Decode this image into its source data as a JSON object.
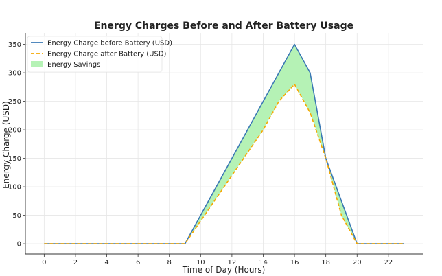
{
  "chart_data": {
    "type": "line",
    "title": "Energy Charges Before and After Battery Usage",
    "xlabel": "Time of Day (Hours)",
    "ylabel": "Energy Charge (USD)",
    "x": [
      0,
      1,
      2,
      3,
      4,
      5,
      6,
      7,
      8,
      9,
      10,
      11,
      12,
      13,
      14,
      15,
      16,
      17,
      18,
      19,
      20,
      21,
      22,
      23
    ],
    "xlim": [
      -1.2,
      24.2
    ],
    "ylim": [
      -18,
      370
    ],
    "xticks": [
      0,
      2,
      4,
      6,
      8,
      10,
      12,
      14,
      16,
      18,
      20,
      22
    ],
    "yticks": [
      0,
      50,
      100,
      150,
      200,
      250,
      300,
      350
    ],
    "grid": true,
    "legend_position": "top-left",
    "series": [
      {
        "name": "Energy Charge before Battery (USD)",
        "style": "solid",
        "color": "#3a78b4",
        "values": [
          0,
          0,
          0,
          0,
          0,
          0,
          0,
          0,
          0,
          0,
          50,
          100,
          150,
          200,
          250,
          300,
          350,
          300,
          150,
          75,
          0,
          0,
          0,
          0
        ]
      },
      {
        "name": "Energy Charge after Battery (USD)",
        "style": "dashed",
        "color": "#f5a800",
        "values": [
          0,
          0,
          0,
          0,
          0,
          0,
          0,
          0,
          0,
          0,
          40,
          80,
          120,
          160,
          200,
          250,
          280,
          230,
          150,
          50,
          0,
          0,
          0,
          0
        ]
      }
    ],
    "fill": {
      "name": "Energy Savings",
      "color": "#b5f2b5",
      "between": [
        0,
        1
      ]
    }
  }
}
